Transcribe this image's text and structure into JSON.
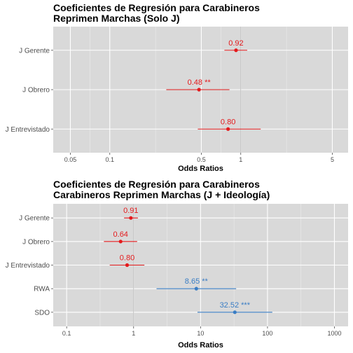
{
  "chart_data": [
    {
      "type": "scatter",
      "title": "Coeficientes de Regresión para Carabineros",
      "subtitle": "Reprimen Marchas (Solo J)",
      "xlabel": "Odds Ratios",
      "ylabel": "",
      "x_scale": "log10",
      "xlim": [
        0.037,
        6.6
      ],
      "x_ticks": [
        0.05,
        0.1,
        0.5,
        1,
        5
      ],
      "x_tick_labels": [
        "0.05",
        "0.1",
        "0.5",
        "1",
        "5"
      ],
      "x_reference_line": 1,
      "grid": true,
      "categories": [
        "J Gerente",
        "J Obrero",
        "J Entrevistado"
      ],
      "points": [
        {
          "label": "J Gerente",
          "estimate": 0.92,
          "ci_low": 0.75,
          "ci_high": 1.12,
          "text": "0.92",
          "color": "#e41a1c"
        },
        {
          "label": "J Obrero",
          "estimate": 0.48,
          "ci_low": 0.27,
          "ci_high": 0.82,
          "text": "0.48 **",
          "color": "#e41a1c"
        },
        {
          "label": "J Entrevistado",
          "estimate": 0.8,
          "ci_low": 0.47,
          "ci_high": 1.42,
          "text": "0.80",
          "color": "#e41a1c"
        }
      ]
    },
    {
      "type": "scatter",
      "title": "Coeficientes de Regresión para Carabineros",
      "subtitle": "Carabineros Reprimen Marchas (J + Ideología)",
      "xlabel": "Odds Ratios",
      "ylabel": "",
      "x_scale": "log10",
      "xlim": [
        0.063,
        1600
      ],
      "x_ticks": [
        0.1,
        1,
        10,
        100,
        1000
      ],
      "x_tick_labels": [
        "0.1",
        "1",
        "10",
        "100",
        "1000"
      ],
      "x_reference_line": 1,
      "grid": true,
      "categories": [
        "J Gerente",
        "J Obrero",
        "J Entrevistado",
        "RWA",
        "SDO"
      ],
      "points": [
        {
          "label": "J Gerente",
          "estimate": 0.91,
          "ci_low": 0.72,
          "ci_high": 1.16,
          "text": "0.91",
          "color": "#e41a1c"
        },
        {
          "label": "J Obrero",
          "estimate": 0.64,
          "ci_low": 0.36,
          "ci_high": 1.13,
          "text": "0.64",
          "color": "#e41a1c"
        },
        {
          "label": "J Entrevistado",
          "estimate": 0.8,
          "ci_low": 0.44,
          "ci_high": 1.45,
          "text": "0.80",
          "color": "#e41a1c"
        },
        {
          "label": "RWA",
          "estimate": 8.65,
          "ci_low": 2.2,
          "ci_high": 34,
          "text": "8.65 **",
          "color": "#3a7dc4"
        },
        {
          "label": "SDO",
          "estimate": 32.52,
          "ci_low": 9.0,
          "ci_high": 118,
          "text": "32.52 ***",
          "color": "#3a7dc4"
        }
      ]
    }
  ]
}
